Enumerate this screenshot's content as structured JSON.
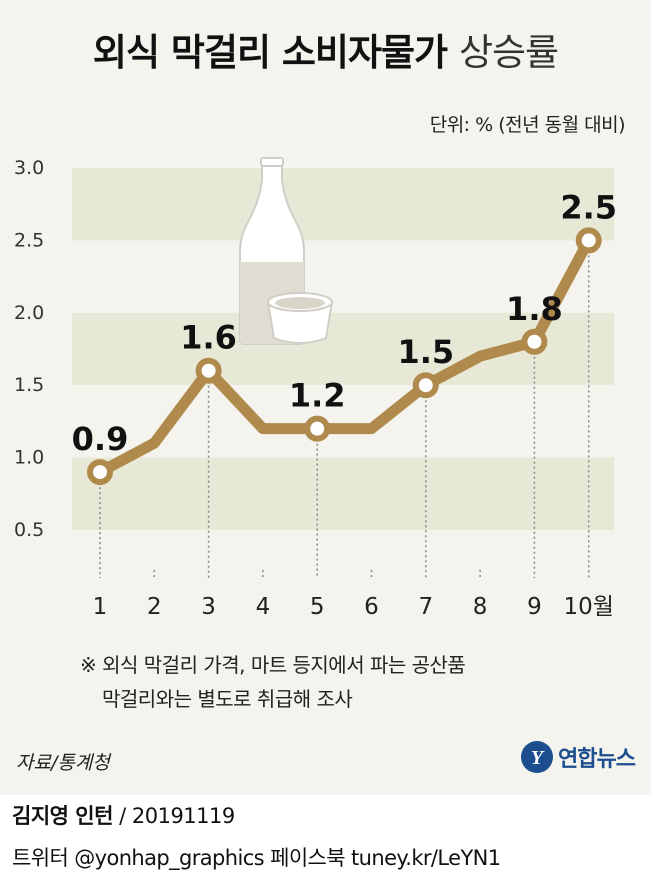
{
  "header": {
    "title": "외식 막걸리 소비자물가",
    "subtitle": "상승률",
    "unit": "단위: % (전년 동월 대비)"
  },
  "chart_data": {
    "type": "line",
    "x": [
      "1",
      "2",
      "3",
      "4",
      "5",
      "6",
      "7",
      "8",
      "9",
      "10월"
    ],
    "series": [
      {
        "values": [
          0.9,
          1.1,
          1.6,
          1.2,
          1.2,
          1.2,
          1.5,
          1.7,
          1.8,
          2.5
        ]
      }
    ],
    "labeled_points": [
      {
        "index": 0,
        "label": "0.9"
      },
      {
        "index": 2,
        "label": "1.6"
      },
      {
        "index": 4,
        "label": "1.2"
      },
      {
        "index": 6,
        "label": "1.5"
      },
      {
        "index": 8,
        "label": "1.8"
      },
      {
        "index": 9,
        "label": "2.5"
      }
    ],
    "yticks": [
      "0.5",
      "1.0",
      "1.5",
      "2.0",
      "2.5",
      "3.0"
    ],
    "ylim": [
      0.5,
      3.0
    ],
    "grid": "alternating-bands",
    "line_color": "#b08a4c",
    "marker_fill": "#ffffff",
    "band_color": "#e8e8d6"
  },
  "footnote": {
    "line1": "※ 외식 막걸리 가격, 마트 등지에서 파는 공산품",
    "line2": "막걸리와는 별도로 취급해 조사"
  },
  "source": "자료/통계청",
  "logo": {
    "text": "연합뉴스",
    "mark_letter": "Y",
    "color": "#1b4d8f"
  },
  "credit": {
    "author": "김지영 인턴",
    "date": "/ 20191119"
  },
  "social": "트위터 @yonhap_graphics  페이스북 tuney.kr/LeYN1"
}
